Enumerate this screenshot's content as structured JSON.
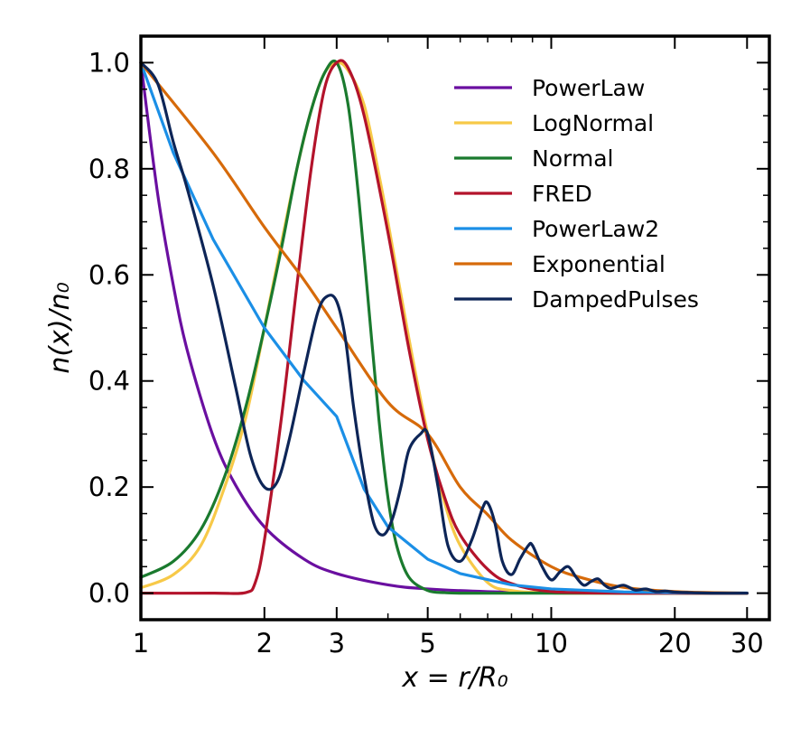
{
  "chart_data": {
    "type": "line",
    "title": "",
    "xlabel": "x = r/R₀",
    "ylabel": "n(x)/n₀",
    "xscale": "log",
    "xlim": [
      1,
      34
    ],
    "ylim": [
      -0.05,
      1.05
    ],
    "grid": false,
    "legend_position": "top-right",
    "x_ticks": [
      {
        "value": 1,
        "label": "1"
      },
      {
        "value": 2,
        "label": "2"
      },
      {
        "value": 3,
        "label": "3"
      },
      {
        "value": 5,
        "label": "5"
      },
      {
        "value": 10,
        "label": "10"
      },
      {
        "value": 20,
        "label": "20"
      },
      {
        "value": 30,
        "label": "30"
      }
    ],
    "x_minor_ticks": [
      4,
      6,
      7,
      8,
      9
    ],
    "y_ticks": [
      {
        "value": 0.0,
        "label": "0.0"
      },
      {
        "value": 0.2,
        "label": "0.2"
      },
      {
        "value": 0.4,
        "label": "0.4"
      },
      {
        "value": 0.6,
        "label": "0.6"
      },
      {
        "value": 0.8,
        "label": "0.8"
      },
      {
        "value": 1.0,
        "label": "1.0"
      }
    ],
    "y_minor_ticks": [
      0.05,
      0.1,
      0.15,
      0.25,
      0.3,
      0.35,
      0.45,
      0.5,
      0.55,
      0.65,
      0.7,
      0.75,
      0.85,
      0.9,
      0.95
    ],
    "series": [
      {
        "name": "PowerLaw",
        "color": "#6a0fa0",
        "x": [
          1,
          1.1,
          1.2,
          1.3,
          1.5,
          1.7,
          2,
          2.5,
          3,
          4,
          5,
          7,
          10,
          15,
          20,
          30
        ],
        "y": [
          1.0,
          0.75,
          0.58,
          0.455,
          0.296,
          0.204,
          0.125,
          0.064,
          0.037,
          0.0156,
          0.008,
          0.0029,
          0.001,
          0.0003,
          0.0001,
          0.0
        ]
      },
      {
        "name": "LogNormal",
        "color": "#f7c948",
        "x": [
          1,
          1.2,
          1.4,
          1.6,
          1.8,
          2.0,
          2.2,
          2.4,
          2.6,
          2.8,
          3.0,
          3.2,
          3.5,
          3.8,
          4.0,
          4.5,
          5.0,
          5.5,
          6.0,
          7.0,
          8.0,
          10,
          15,
          20,
          30
        ],
        "y": [
          0.01,
          0.035,
          0.09,
          0.2,
          0.33,
          0.5,
          0.66,
          0.8,
          0.91,
          0.98,
          1.0,
          0.985,
          0.92,
          0.79,
          0.7,
          0.48,
          0.3,
          0.17,
          0.09,
          0.02,
          0.005,
          0.0005,
          0.0,
          0.0,
          0.0
        ]
      },
      {
        "name": "Normal",
        "color": "#1a7a2e",
        "x": [
          1,
          1.2,
          1.4,
          1.6,
          1.8,
          2.0,
          2.2,
          2.4,
          2.6,
          2.8,
          3.0,
          3.2,
          3.4,
          3.6,
          3.8,
          4.0,
          4.2,
          4.5,
          5.0,
          5.5,
          6.0,
          8.0,
          10,
          20,
          30
        ],
        "y": [
          0.03,
          0.06,
          0.12,
          0.22,
          0.35,
          0.5,
          0.65,
          0.8,
          0.91,
          0.98,
          1.0,
          0.92,
          0.74,
          0.53,
          0.33,
          0.18,
          0.09,
          0.03,
          0.005,
          0.001,
          0.0,
          0.0,
          0.0,
          0.0,
          0.0
        ]
      },
      {
        "name": "FRED",
        "color": "#b3132b",
        "x": [
          1,
          1.5,
          1.8,
          1.9,
          2.0,
          2.2,
          2.4,
          2.6,
          2.8,
          3.0,
          3.2,
          3.5,
          4.0,
          4.5,
          5.0,
          5.5,
          6.0,
          7.0,
          8.0,
          10,
          15,
          20,
          30
        ],
        "y": [
          0.0,
          0.0,
          0.001,
          0.02,
          0.1,
          0.33,
          0.58,
          0.8,
          0.95,
          1.0,
          0.99,
          0.9,
          0.68,
          0.46,
          0.29,
          0.18,
          0.11,
          0.045,
          0.018,
          0.003,
          0.0,
          0.0,
          0.0
        ]
      },
      {
        "name": "PowerLaw2",
        "color": "#1b8fe6",
        "x": [
          1,
          1.2,
          1.5,
          2.0,
          2.5,
          3.0,
          3.5,
          4.0,
          5.0,
          6.0,
          8.0,
          10,
          15,
          20,
          30
        ],
        "y": [
          1.0,
          0.83,
          0.667,
          0.5,
          0.4,
          0.333,
          0.196,
          0.125,
          0.064,
          0.037,
          0.0156,
          0.008,
          0.0024,
          0.001,
          0.0003
        ]
      },
      {
        "name": "Exponential",
        "color": "#d66a0a",
        "x": [
          1,
          1.5,
          2,
          2.5,
          3,
          4,
          5,
          6,
          7,
          8,
          10,
          12,
          15,
          20,
          25,
          30
        ],
        "y": [
          1.0,
          0.83,
          0.69,
          0.59,
          0.5,
          0.36,
          0.3,
          0.2,
          0.148,
          0.1,
          0.05,
          0.028,
          0.011,
          0.003,
          0.001,
          0.0
        ]
      },
      {
        "name": "DampedPulses",
        "color": "#0d2557",
        "x": [
          1,
          1.1,
          1.2,
          1.3,
          1.5,
          1.7,
          1.85,
          2.0,
          2.15,
          2.3,
          2.5,
          2.7,
          2.85,
          3.0,
          3.15,
          3.3,
          3.5,
          3.7,
          3.9,
          4.1,
          4.3,
          4.5,
          4.8,
          5.0,
          5.3,
          5.6,
          6.0,
          6.4,
          6.8,
          7.0,
          7.3,
          7.6,
          8.0,
          8.4,
          8.8,
          9.0,
          9.5,
          10.0,
          10.5,
          11.0,
          11.5,
          12.0,
          12.5,
          13.0,
          13.5,
          14.0,
          15.0,
          16.0,
          17.0,
          18.0,
          19.0,
          20.0,
          22.0,
          25.0,
          30.0
        ],
        "y": [
          1.0,
          0.96,
          0.85,
          0.76,
          0.58,
          0.39,
          0.26,
          0.2,
          0.21,
          0.29,
          0.42,
          0.53,
          0.56,
          0.55,
          0.48,
          0.35,
          0.22,
          0.13,
          0.11,
          0.14,
          0.2,
          0.27,
          0.3,
          0.3,
          0.2,
          0.09,
          0.06,
          0.1,
          0.16,
          0.17,
          0.13,
          0.06,
          0.035,
          0.065,
          0.09,
          0.09,
          0.05,
          0.025,
          0.04,
          0.05,
          0.03,
          0.015,
          0.022,
          0.027,
          0.015,
          0.009,
          0.015,
          0.006,
          0.008,
          0.003,
          0.004,
          0.002,
          0.001,
          0.0,
          0.0
        ]
      }
    ]
  }
}
